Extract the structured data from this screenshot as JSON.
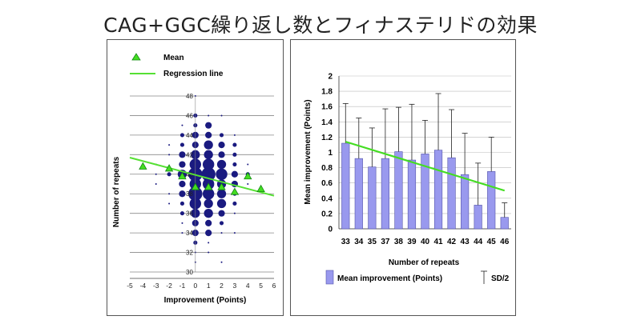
{
  "title": "CAG+GGC繰り返し数とフィナステリドの効果",
  "chart_data": [
    {
      "type": "scatter",
      "xlabel": "Improvement (Points)",
      "ylabel": "Number of repeats",
      "xlim": [
        -5,
        6
      ],
      "ylim": [
        30,
        48
      ],
      "xticks": [
        "-5",
        "-4",
        "-3",
        "-2",
        "-1",
        "0",
        "1",
        "2",
        "3",
        "4",
        "5",
        "6"
      ],
      "yticks": [
        "30",
        "32",
        "34",
        "36",
        "38",
        "40",
        "42",
        "44",
        "46",
        "48"
      ],
      "grid": "horizontal",
      "legend": {
        "position": "top-left",
        "items": [
          "Mean",
          "Regression line"
        ]
      },
      "colors": {
        "bubble": "#1a1a80",
        "mean": "#44dd22",
        "regression": "#55e033"
      },
      "bubbles": [
        {
          "x": 0,
          "y": 48,
          "size": 1
        },
        {
          "x": 0,
          "y": 46,
          "size": 2
        },
        {
          "x": 1,
          "y": 46,
          "size": 1
        },
        {
          "x": 2,
          "y": 46,
          "size": 1
        },
        {
          "x": -1,
          "y": 45,
          "size": 1
        },
        {
          "x": 0,
          "y": 45,
          "size": 2
        },
        {
          "x": 1,
          "y": 45,
          "size": 3
        },
        {
          "x": -1,
          "y": 44,
          "size": 2
        },
        {
          "x": 0,
          "y": 44,
          "size": 3
        },
        {
          "x": 1,
          "y": 44,
          "size": 3
        },
        {
          "x": 2,
          "y": 44,
          "size": 2
        },
        {
          "x": 3,
          "y": 44,
          "size": 1
        },
        {
          "x": -2,
          "y": 43,
          "size": 1
        },
        {
          "x": -1,
          "y": 43,
          "size": 2
        },
        {
          "x": 0,
          "y": 43,
          "size": 3
        },
        {
          "x": 1,
          "y": 43,
          "size": 4
        },
        {
          "x": 2,
          "y": 43,
          "size": 3
        },
        {
          "x": 3,
          "y": 43,
          "size": 2
        },
        {
          "x": -2,
          "y": 42,
          "size": 1
        },
        {
          "x": -1,
          "y": 42,
          "size": 3
        },
        {
          "x": 0,
          "y": 42,
          "size": 4
        },
        {
          "x": 1,
          "y": 42,
          "size": 4
        },
        {
          "x": 2,
          "y": 42,
          "size": 3
        },
        {
          "x": 3,
          "y": 42,
          "size": 2
        },
        {
          "x": -3,
          "y": 41,
          "size": 1
        },
        {
          "x": -1,
          "y": 41,
          "size": 3
        },
        {
          "x": 0,
          "y": 41,
          "size": 5
        },
        {
          "x": 1,
          "y": 41,
          "size": 5
        },
        {
          "x": 2,
          "y": 41,
          "size": 4
        },
        {
          "x": 3,
          "y": 41,
          "size": 2
        },
        {
          "x": 4,
          "y": 41,
          "size": 1
        },
        {
          "x": -3,
          "y": 40,
          "size": 1
        },
        {
          "x": -2,
          "y": 40,
          "size": 2
        },
        {
          "x": -1,
          "y": 40,
          "size": 4
        },
        {
          "x": 0,
          "y": 40,
          "size": 6
        },
        {
          "x": 1,
          "y": 40,
          "size": 6
        },
        {
          "x": 2,
          "y": 40,
          "size": 5
        },
        {
          "x": 3,
          "y": 40,
          "size": 3
        },
        {
          "x": 4,
          "y": 40,
          "size": 2
        },
        {
          "x": -3,
          "y": 39,
          "size": 1
        },
        {
          "x": -1,
          "y": 39,
          "size": 3
        },
        {
          "x": 0,
          "y": 39,
          "size": 5
        },
        {
          "x": 1,
          "y": 39,
          "size": 5
        },
        {
          "x": 2,
          "y": 39,
          "size": 4
        },
        {
          "x": 3,
          "y": 39,
          "size": 3
        },
        {
          "x": 4,
          "y": 39,
          "size": 1
        },
        {
          "x": -2,
          "y": 38,
          "size": 1
        },
        {
          "x": -1,
          "y": 38,
          "size": 3
        },
        {
          "x": 0,
          "y": 38,
          "size": 6
        },
        {
          "x": 1,
          "y": 38,
          "size": 5
        },
        {
          "x": 2,
          "y": 38,
          "size": 4
        },
        {
          "x": 3,
          "y": 38,
          "size": 2
        },
        {
          "x": -2,
          "y": 37,
          "size": 1
        },
        {
          "x": -1,
          "y": 37,
          "size": 2
        },
        {
          "x": 0,
          "y": 37,
          "size": 5
        },
        {
          "x": 1,
          "y": 37,
          "size": 4
        },
        {
          "x": 2,
          "y": 37,
          "size": 4
        },
        {
          "x": 3,
          "y": 37,
          "size": 2
        },
        {
          "x": -1,
          "y": 36,
          "size": 2
        },
        {
          "x": 0,
          "y": 36,
          "size": 4
        },
        {
          "x": 1,
          "y": 36,
          "size": 4
        },
        {
          "x": 2,
          "y": 36,
          "size": 3
        },
        {
          "x": 3,
          "y": 36,
          "size": 1
        },
        {
          "x": -1,
          "y": 35,
          "size": 1
        },
        {
          "x": 0,
          "y": 35,
          "size": 3
        },
        {
          "x": 1,
          "y": 35,
          "size": 3
        },
        {
          "x": 2,
          "y": 35,
          "size": 2
        },
        {
          "x": -1,
          "y": 34,
          "size": 1
        },
        {
          "x": 0,
          "y": 34,
          "size": 3
        },
        {
          "x": 1,
          "y": 34,
          "size": 3
        },
        {
          "x": 2,
          "y": 34,
          "size": 1
        },
        {
          "x": 3,
          "y": 34,
          "size": 1
        },
        {
          "x": 0,
          "y": 33,
          "size": 2
        },
        {
          "x": 1,
          "y": 33,
          "size": 1
        },
        {
          "x": 0,
          "y": 32,
          "size": 1
        },
        {
          "x": 1,
          "y": 32,
          "size": 1
        },
        {
          "x": 0,
          "y": 31,
          "size": 1
        },
        {
          "x": 2,
          "y": 31,
          "size": 1
        }
      ],
      "means": [
        {
          "x": -4.0,
          "y": 40.8
        },
        {
          "x": -2.0,
          "y": 40.6
        },
        {
          "x": -1.0,
          "y": 39.8
        },
        {
          "x": 0.0,
          "y": 38.7
        },
        {
          "x": 1.0,
          "y": 38.7
        },
        {
          "x": 2.0,
          "y": 38.7
        },
        {
          "x": 3.0,
          "y": 38.2
        },
        {
          "x": 4.0,
          "y": 39.8
        },
        {
          "x": 5.0,
          "y": 38.5
        }
      ],
      "regression_line": {
        "from": [
          -5,
          41.7
        ],
        "to": [
          6,
          37.8
        ]
      }
    },
    {
      "type": "bar",
      "categories": [
        "33",
        "34",
        "35",
        "37",
        "38",
        "39",
        "40",
        "41",
        "42",
        "43",
        "44",
        "45",
        "46"
      ],
      "values": [
        1.12,
        0.92,
        0.81,
        0.92,
        1.01,
        0.9,
        0.98,
        1.03,
        0.93,
        0.71,
        0.31,
        0.75,
        0.15
      ],
      "sd_half": [
        0.52,
        0.53,
        0.51,
        0.65,
        0.58,
        0.73,
        0.44,
        0.74,
        0.63,
        0.54,
        0.55,
        0.45,
        0.19
      ],
      "xlabel": "Number of repeats",
      "ylabel": "Mean improvement (Points)",
      "ylim": [
        0,
        2
      ],
      "yticks": [
        "0",
        "0.2",
        "0.4",
        "0.6",
        "0.8",
        "1",
        "1.2",
        "1.4",
        "1.6",
        "1.8",
        "2"
      ],
      "grid": "horizontal",
      "legend": {
        "position": "bottom",
        "items": [
          "Mean improvement (Points)",
          "SD/2"
        ]
      },
      "colors": {
        "bar": "#9999ee",
        "bar_edge": "#5555aa",
        "trend": "#44dd22"
      },
      "trend_line": {
        "from": [
          0,
          1.14
        ],
        "to": [
          12,
          0.5
        ]
      }
    }
  ]
}
